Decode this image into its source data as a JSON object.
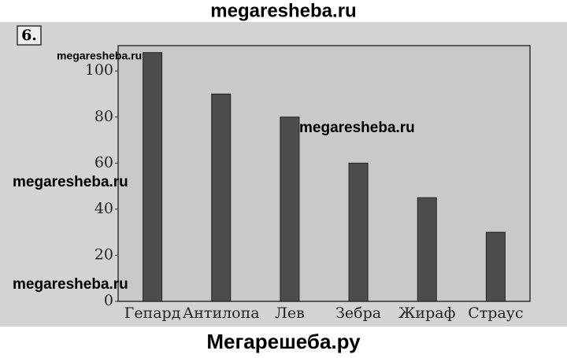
{
  "header": "megaresheba.ru",
  "problem_number": "6.",
  "watermarks": [
    "megaresheba.ru",
    "megaresheba.ru",
    "megaresheba.ru",
    "megaresheba.ru"
  ],
  "footer": "Мегарешеба.ру",
  "chart_data": {
    "type": "bar",
    "categories": [
      "Гепард",
      "Антилопа",
      "Лев",
      "Зебра",
      "Жираф",
      "Страус"
    ],
    "values": [
      108,
      90,
      80,
      60,
      45,
      30
    ],
    "color": "#4d4d4d",
    "ylim": [
      0,
      111
    ],
    "yticks": [
      0,
      20,
      40,
      60,
      80,
      100
    ],
    "grid": false
  }
}
